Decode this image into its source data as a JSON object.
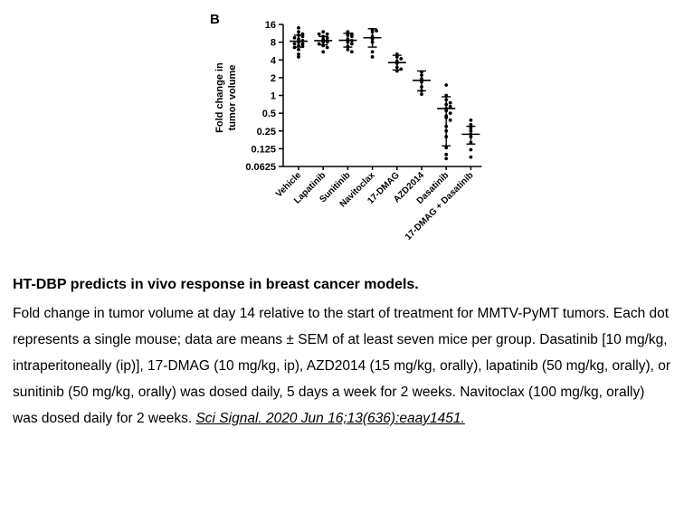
{
  "chart_data": {
    "type": "scatter",
    "panel_label": "B",
    "ylabel_lines": [
      "Fold change in",
      "tumor volume"
    ],
    "yscale": "log2",
    "ylim": [
      0.0625,
      16
    ],
    "yticks": [
      16,
      8,
      4,
      2,
      1,
      0.5,
      0.25,
      0.125,
      0.0625
    ],
    "ytick_labels": [
      "16",
      "8",
      "4",
      "2",
      "1",
      "0.5",
      "0.25",
      "0.125",
      "0.0625"
    ],
    "categories": [
      "Vehicle",
      "Lapatinib",
      "Sunitinib",
      "Navitoclax",
      "17-DMAG",
      "AZD2014",
      "Dasatinib",
      "17-DMAG + Dasatinib"
    ],
    "groups": [
      {
        "mean": 8.3,
        "sem_low": 6.6,
        "sem_high": 10.5,
        "points": [
          14,
          12,
          11,
          10.5,
          10,
          9.5,
          9,
          8.5,
          8,
          7.5,
          7.5,
          7,
          6.8,
          6.5,
          6,
          5,
          4.5
        ]
      },
      {
        "mean": 8.5,
        "sem_low": 7.2,
        "sem_high": 10,
        "points": [
          12,
          11,
          11,
          10,
          9.5,
          9,
          8.5,
          8,
          8,
          7.5,
          7,
          6.5,
          5.5
        ]
      },
      {
        "mean": 8.6,
        "sem_low": 6.6,
        "sem_high": 11.3,
        "points": [
          12,
          11,
          10.5,
          10,
          9,
          8.5,
          8,
          7.5,
          6.8,
          6,
          5.5
        ]
      },
      {
        "mean": 9.5,
        "sem_low": 6.6,
        "sem_high": 13.5,
        "points": [
          13,
          12.5,
          12,
          10,
          9,
          8,
          5.5,
          4.5
        ]
      },
      {
        "mean": 3.6,
        "sem_low": 2.7,
        "sem_high": 4.8,
        "points": [
          5,
          4.5,
          4.2,
          3.8,
          3.5,
          3,
          2.8,
          2.6
        ]
      },
      {
        "mean": 1.8,
        "sem_low": 1.2,
        "sem_high": 2.6,
        "points": [
          2.5,
          2.2,
          1.9,
          1.7,
          1.4,
          1.2,
          1.05
        ]
      },
      {
        "mean": 0.6,
        "sem_low": 0.14,
        "sem_high": 0.95,
        "points": [
          1.5,
          1,
          0.85,
          0.75,
          0.7,
          0.65,
          0.6,
          0.55,
          0.5,
          0.45,
          0.42,
          0.38,
          0.3,
          0.25,
          0.2,
          0.13,
          0.1,
          0.085
        ]
      },
      {
        "mean": 0.22,
        "sem_low": 0.15,
        "sem_high": 0.3,
        "points": [
          0.38,
          0.32,
          0.28,
          0.25,
          0.22,
          0.2,
          0.16,
          0.12,
          0.09
        ]
      }
    ]
  },
  "caption": {
    "title": "HT-DBP predicts in vivo response in breast cancer models.",
    "body": "Fold change in tumor volume at day 14 relative to the start of treatment for MMTV-PyMT tumors. Each dot represents a single mouse; data are means ± SEM of at least seven mice per group. Dasatinib [10 mg/kg, intraperitoneally (ip)], 17-DMAG (10 mg/kg, ip), AZD2014 (15 mg/kg, orally), lapatinib (50 mg/kg, orally), or sunitinib (50 mg/kg, orally) was dosed daily, 5 days a week for 2 weeks. Navitoclax (100 mg/kg, orally) was dosed daily for 2 weeks.",
    "citation": "Sci Signal. 2020 Jun 16;13(636):eaay1451."
  }
}
